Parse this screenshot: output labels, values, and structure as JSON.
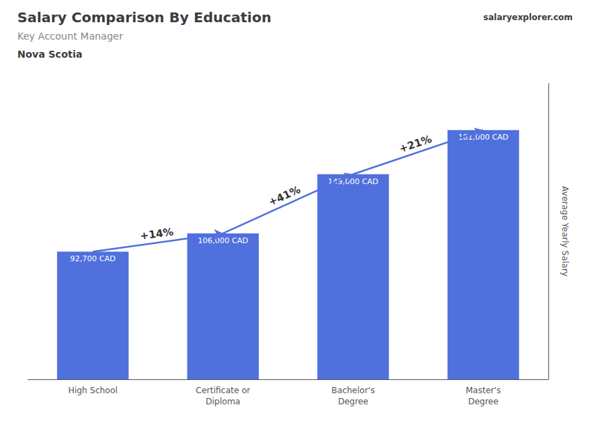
{
  "chart_data": {
    "type": "bar",
    "title": "Salary Comparison By Education",
    "subtitle": "Key Account Manager",
    "location": "Nova Scotia",
    "brand": "salaryexplorer.com",
    "ylabel": "Average Yearly Salary",
    "categories": [
      "High School",
      "Certificate or\nDiploma",
      "Bachelor's\nDegree",
      "Master's\nDegree"
    ],
    "values": [
      92700,
      106000,
      149000,
      181000
    ],
    "value_labels": [
      "92,700 CAD",
      "106,000 CAD",
      "149,000 CAD",
      "181,000 CAD"
    ],
    "data_labels": true,
    "annotations": [
      "+14%",
      "+41%",
      "+21%"
    ],
    "ylim": [
      0,
      215000
    ],
    "grid": false,
    "tick_labels": "x"
  }
}
